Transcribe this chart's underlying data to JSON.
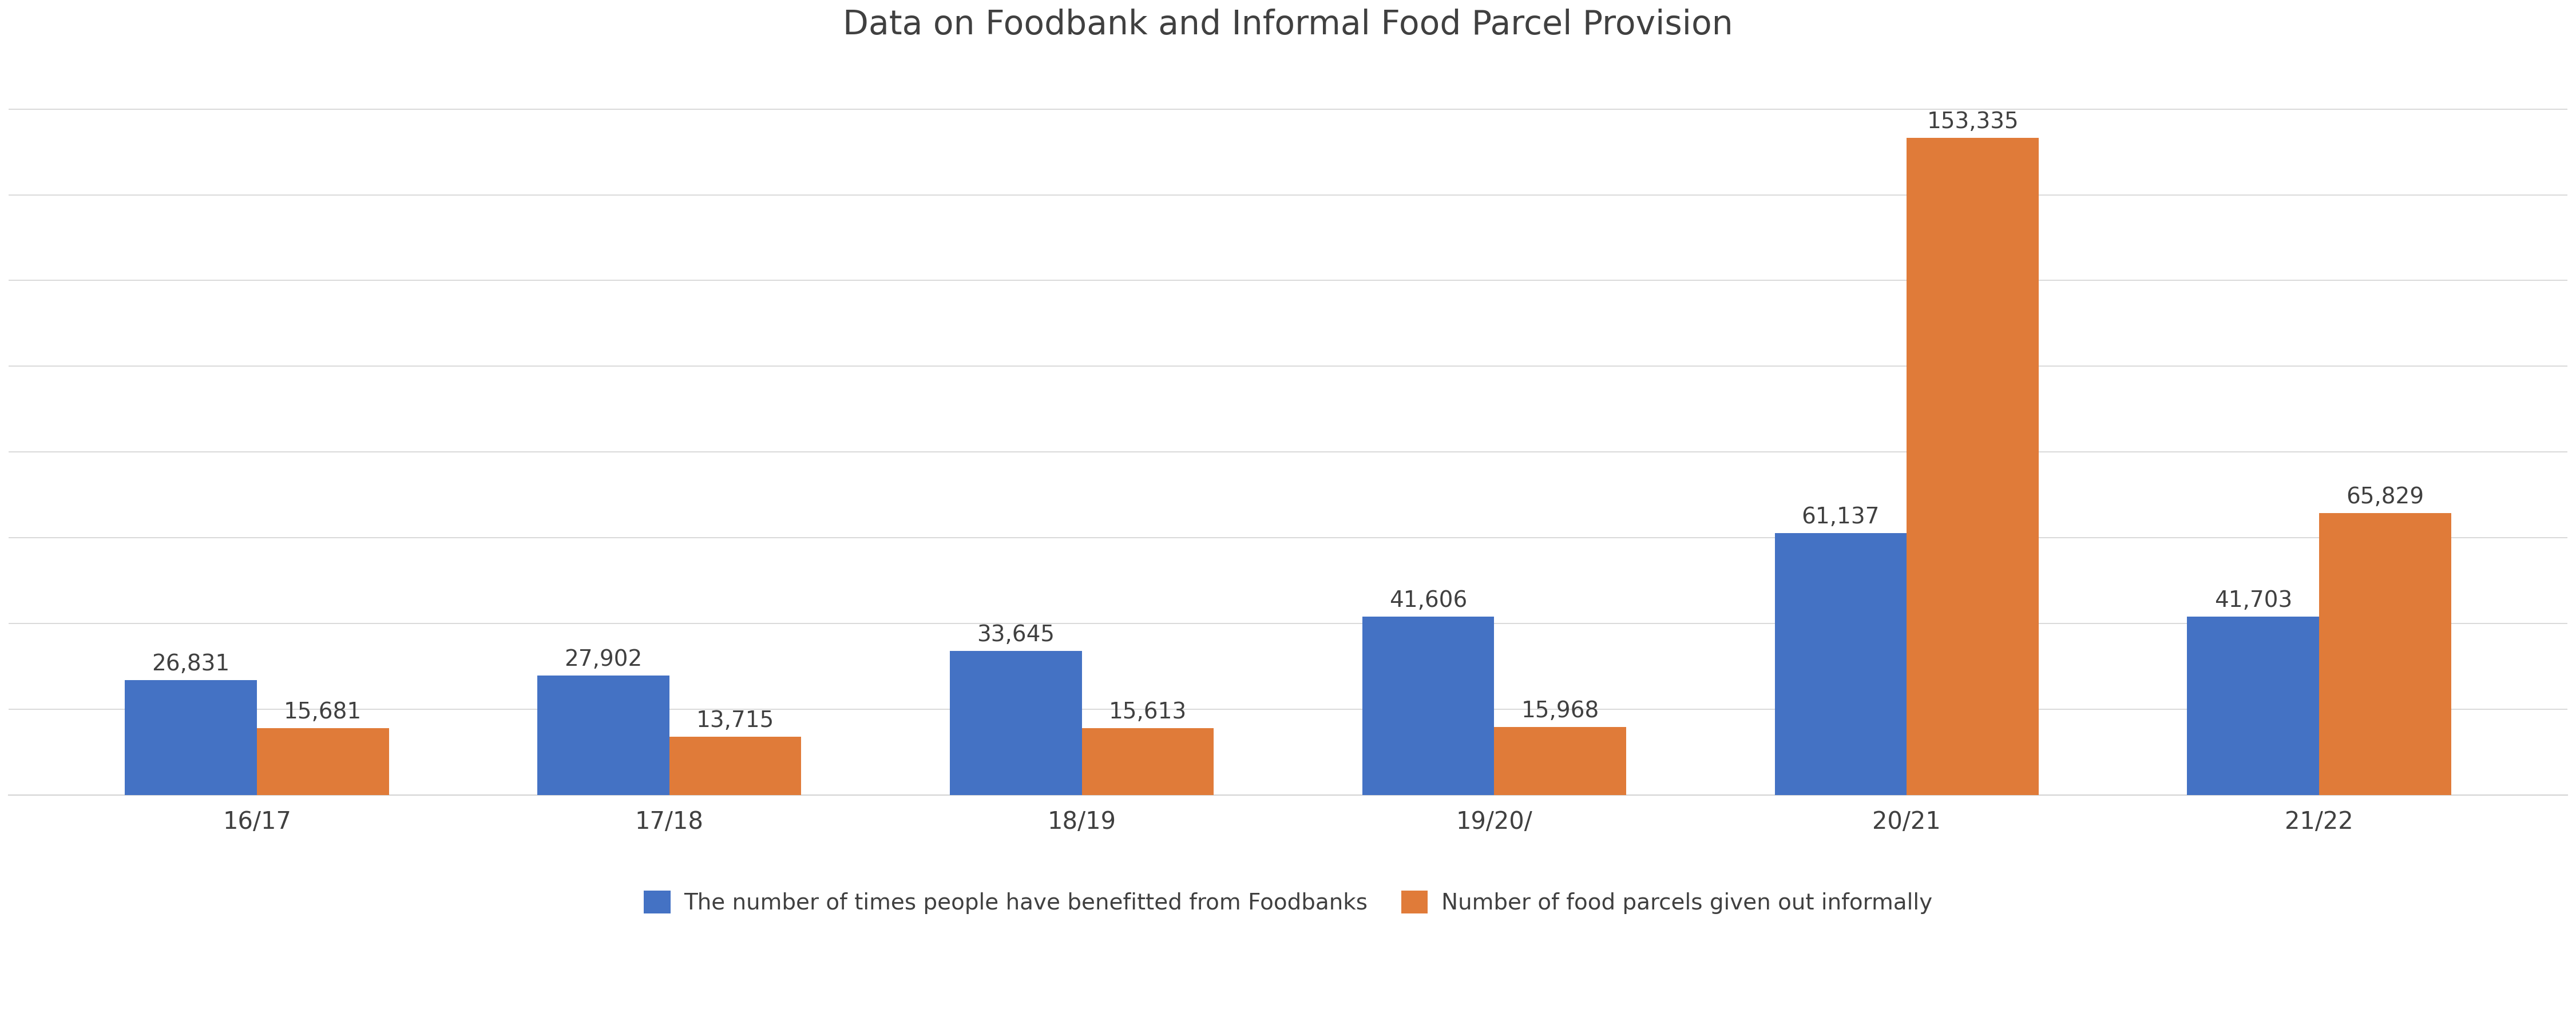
{
  "title": "Data on Foodbank and Informal Food Parcel Provision",
  "categories": [
    "16/17",
    "17/18",
    "18/19",
    "19/20/",
    "20/21",
    "21/22"
  ],
  "series": [
    {
      "label": "The number of times people have benefitted from Foodbanks",
      "color": "#4472C4",
      "values": [
        26831,
        27902,
        33645,
        41606,
        61137,
        41703
      ]
    },
    {
      "label": "Number of food parcels given out informally",
      "color": "#E07B39",
      "values": [
        15681,
        13715,
        15613,
        15968,
        153335,
        65829
      ]
    }
  ],
  "background_color": "#FFFFFF",
  "plot_background_color": "#FFFFFF",
  "grid_color": "#D3D3D3",
  "title_fontsize": 42,
  "tick_fontsize": 30,
  "bar_value_fontsize": 28,
  "legend_fontsize": 28,
  "bar_width": 0.32,
  "ylim": [
    0,
    170000
  ],
  "yticks": [
    0,
    20000,
    40000,
    60000,
    80000,
    100000,
    120000,
    140000,
    160000
  ]
}
